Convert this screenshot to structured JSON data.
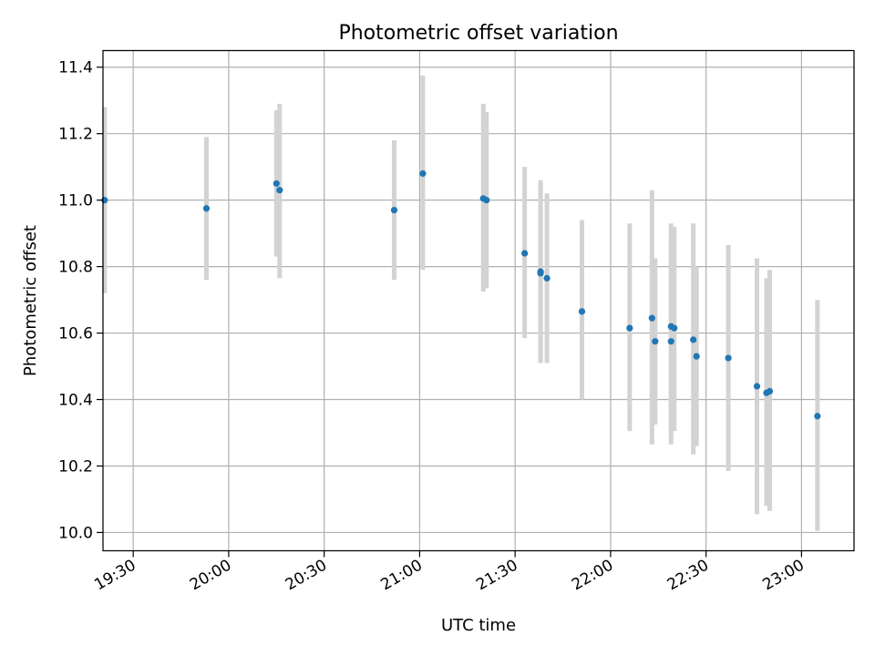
{
  "chart_data": {
    "type": "scatter",
    "title": "Photometric offset variation",
    "xlabel": "UTC time",
    "ylabel": "Photometric offset",
    "xlim": [
      "19:20:30",
      "23:16:30"
    ],
    "ylim": [
      9.945,
      11.45
    ],
    "x_ticks": [
      "19:30",
      "20:00",
      "20:30",
      "21:00",
      "21:30",
      "22:00",
      "22:30",
      "23:00"
    ],
    "y_ticks": [
      "10.0",
      "10.2",
      "10.4",
      "10.6",
      "10.8",
      "11.0",
      "11.2",
      "11.4"
    ],
    "grid": true,
    "series": [
      {
        "color": "#1f77b4",
        "errorbar_color": "#d3d3d3",
        "points": [
          {
            "x": "19:21",
            "y": 11.0,
            "ylow": 10.72,
            "yhigh": 11.28
          },
          {
            "x": "19:53",
            "y": 10.975,
            "ylow": 10.76,
            "yhigh": 11.19
          },
          {
            "x": "20:15",
            "y": 11.05,
            "ylow": 10.83,
            "yhigh": 11.27
          },
          {
            "x": "20:16",
            "y": 11.03,
            "ylow": 10.765,
            "yhigh": 11.29
          },
          {
            "x": "20:52",
            "y": 10.97,
            "ylow": 10.76,
            "yhigh": 11.18
          },
          {
            "x": "21:01",
            "y": 11.08,
            "ylow": 10.79,
            "yhigh": 11.375
          },
          {
            "x": "21:20",
            "y": 11.005,
            "ylow": 10.725,
            "yhigh": 11.29
          },
          {
            "x": "21:21",
            "y": 11.0,
            "ylow": 10.735,
            "yhigh": 11.265
          },
          {
            "x": "21:33",
            "y": 10.84,
            "ylow": 10.585,
            "yhigh": 11.1
          },
          {
            "x": "21:38",
            "y": 10.785,
            "ylow": 10.51,
            "yhigh": 11.06
          },
          {
            "x": "21:38",
            "y": 10.78,
            "ylow": 10.51,
            "yhigh": 11.05
          },
          {
            "x": "21:40",
            "y": 10.765,
            "ylow": 10.51,
            "yhigh": 11.02
          },
          {
            "x": "21:51",
            "y": 10.665,
            "ylow": 10.4,
            "yhigh": 10.94
          },
          {
            "x": "22:06",
            "y": 10.615,
            "ylow": 10.305,
            "yhigh": 10.93
          },
          {
            "x": "22:13",
            "y": 10.645,
            "ylow": 10.265,
            "yhigh": 11.03
          },
          {
            "x": "22:14",
            "y": 10.575,
            "ylow": 10.325,
            "yhigh": 10.825
          },
          {
            "x": "22:19",
            "y": 10.575,
            "ylow": 10.265,
            "yhigh": 10.885
          },
          {
            "x": "22:19",
            "y": 10.62,
            "ylow": 10.3,
            "yhigh": 10.93
          },
          {
            "x": "22:20",
            "y": 10.615,
            "ylow": 10.305,
            "yhigh": 10.92
          },
          {
            "x": "22:26",
            "y": 10.58,
            "ylow": 10.235,
            "yhigh": 10.93
          },
          {
            "x": "22:27",
            "y": 10.53,
            "ylow": 10.26,
            "yhigh": 10.8
          },
          {
            "x": "22:37",
            "y": 10.525,
            "ylow": 10.185,
            "yhigh": 10.865
          },
          {
            "x": "22:46",
            "y": 10.44,
            "ylow": 10.055,
            "yhigh": 10.825
          },
          {
            "x": "22:49",
            "y": 10.42,
            "ylow": 10.08,
            "yhigh": 10.765
          },
          {
            "x": "22:50",
            "y": 10.425,
            "ylow": 10.065,
            "yhigh": 10.79
          },
          {
            "x": "23:05",
            "y": 10.35,
            "ylow": 10.005,
            "yhigh": 10.7
          }
        ]
      }
    ]
  }
}
